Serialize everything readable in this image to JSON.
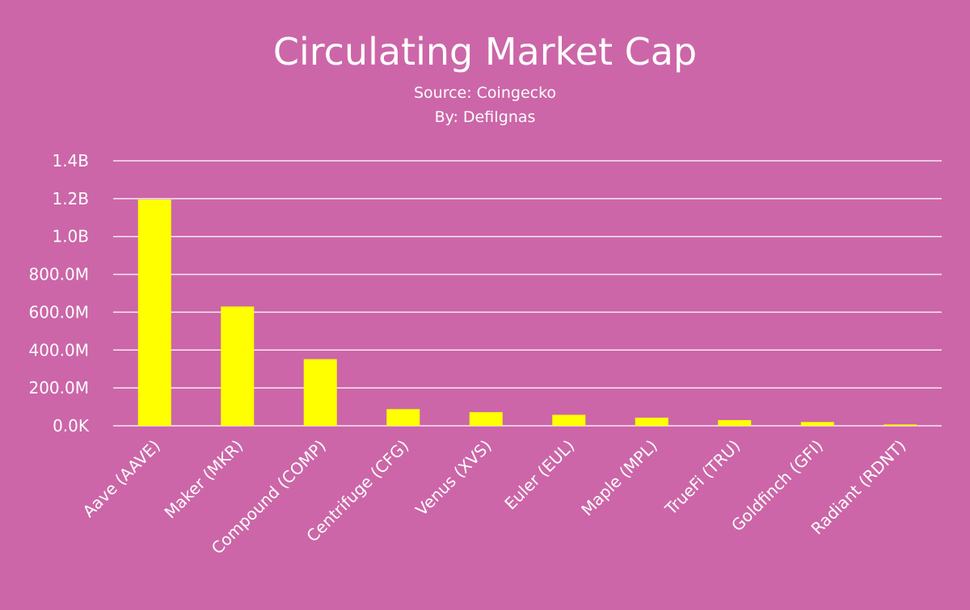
{
  "chart_data": {
    "type": "bar",
    "title": "Circulating Market Cap",
    "subtitles": [
      "Source: Coingecko",
      "By: DefiIgnas"
    ],
    "categories": [
      "Aave (AAVE)",
      "Maker (MKR)",
      "Compound (COMP)",
      "Centrifuge (CFG)",
      "Venus (XVS)",
      "Euler (EUL)",
      "Maple (MPL)",
      "TrueFi (TRU)",
      "Goldfinch (GFI)",
      "Radiant (RDNT)"
    ],
    "values": [
      1195000000,
      630000000,
      352000000,
      88000000,
      72000000,
      58000000,
      43000000,
      30000000,
      20000000,
      7000000
    ],
    "ylim": [
      0,
      1400000000
    ],
    "yticks": [
      0,
      200000000,
      400000000,
      600000000,
      800000000,
      1000000000,
      1200000000,
      1400000000
    ],
    "ytick_labels": [
      "0.0K",
      "200.0M",
      "400.0M",
      "600.0M",
      "800.0M",
      "1.0B",
      "1.2B",
      "1.4B"
    ],
    "grid": true,
    "legend": "none",
    "bar_color": "#ffff00",
    "background_color": "#cc66a8"
  }
}
